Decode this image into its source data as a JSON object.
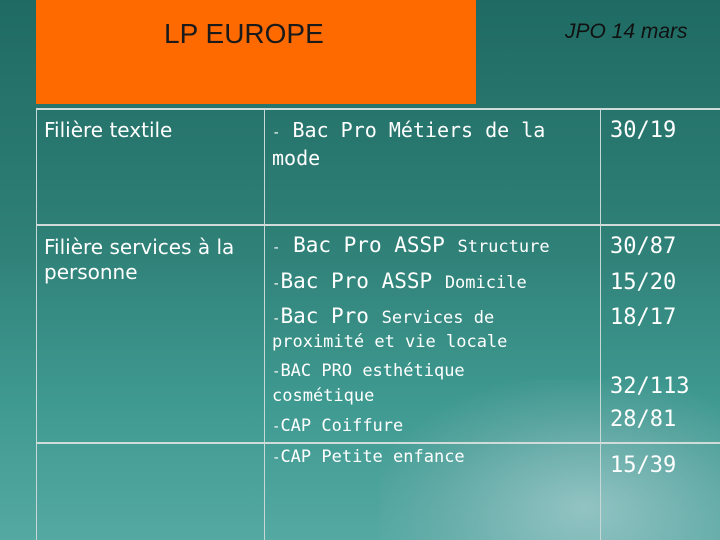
{
  "banner": {
    "title": "LP EUROPE"
  },
  "subtitle": "JPO 14 mars",
  "rows": [
    {
      "label": "Filière textile"
    },
    {
      "label": "Filière services à la personne"
    }
  ],
  "row1": {
    "dash": "-",
    "program_l1": "Bac Pro Métiers de la",
    "program_l2": "mode",
    "stat": "30/19"
  },
  "row2": {
    "i1_main": "Bac Pro ASSP",
    "i1_small": "Structure",
    "i2_main": "Bac Pro ASSP",
    "i2_small": "Domicile",
    "i3_main": "Bac Pro",
    "i3_small_l1": "Services de",
    "i3_small_l2": "proximité et vie locale",
    "i4_l1": "BAC PRO esthétique",
    "i4_l2": "cosmétique",
    "i5": "CAP Coiffure",
    "i6": "CAP Petite enfance",
    "dash": "-",
    "stats": [
      "30/87",
      "15/20",
      "18/17",
      "32/113",
      "28/81",
      "15/39"
    ]
  }
}
